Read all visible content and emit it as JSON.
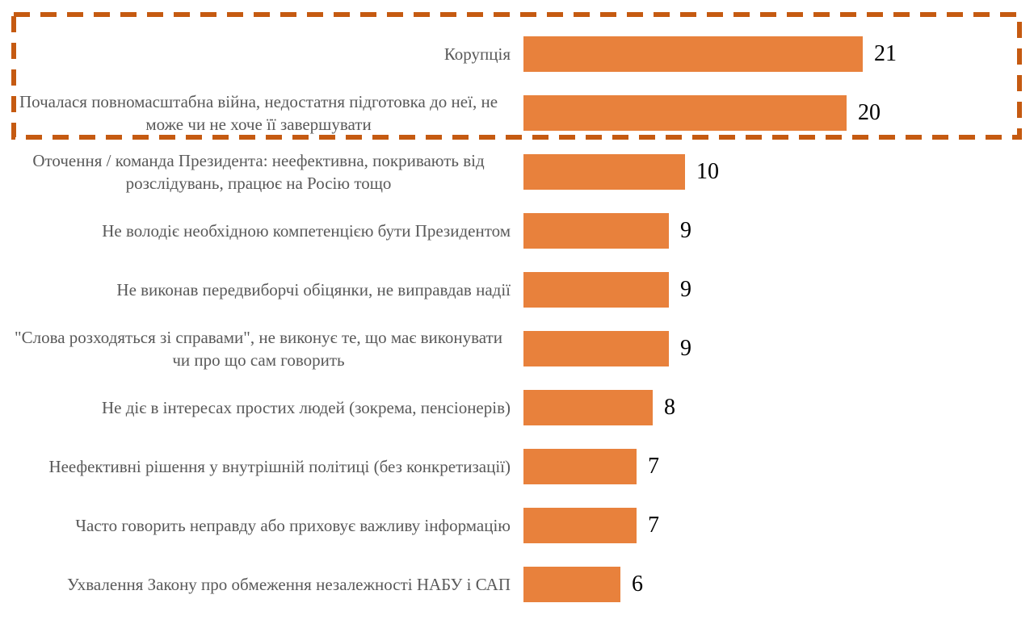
{
  "chart_data": {
    "type": "bar",
    "orientation": "horizontal",
    "title": "",
    "categories": [
      "Корупція",
      "Почалася повномасштабна війна, недостатня підготовка до неї, не може чи не хоче її завершувати",
      "Оточення / команда Президента: неефективна, покривають від розслідувань, працює на Росію тощо",
      "Не володіє необхідною компетенцією бути Президентом",
      "Не виконав передвиборчі обіцянки, не виправдав надії",
      "\"Слова розходяться зі справами\", не виконує те, що має виконувати чи про що сам говорить",
      "Не діє в інтересах простих людей (зокрема, пенсіонерів)",
      "Неефективні рішення у внутрішній політиці (без конкретизації)",
      "Часто говорить неправду або приховує важливу інформацію",
      "Ухвалення Закону про обмеження незалежності НАБУ і САП"
    ],
    "values": [
      21,
      20,
      10,
      9,
      9,
      9,
      8,
      7,
      7,
      6
    ],
    "data_labels": [
      21,
      20,
      10,
      9,
      9,
      9,
      8,
      7,
      7,
      6
    ],
    "xlim": [
      0,
      21
    ],
    "grid": false,
    "legend": null,
    "highlight": {
      "rows": [
        0,
        1
      ],
      "style": "dashed-rectangle",
      "color": "#C55A11"
    },
    "colors": {
      "bar": "#E8813C",
      "category_label": "#595959",
      "value_label": "#000000",
      "background": "#FFFFFF"
    }
  }
}
